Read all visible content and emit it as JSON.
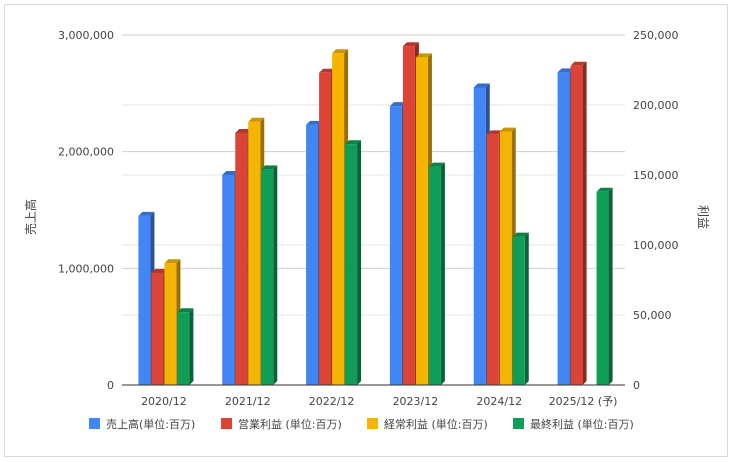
{
  "chart_data": {
    "type": "bar",
    "title": "",
    "categories": [
      "2020/12",
      "2021/12",
      "2022/12",
      "2023/12",
      "2024/12",
      "2025/12 (予)"
    ],
    "left_axis": {
      "label": "売上高",
      "ylim": [
        0,
        3000000
      ],
      "ticks": [
        "0",
        "1,000,000",
        "2,000,000",
        "3,000,000"
      ]
    },
    "right_axis": {
      "label": "利益",
      "ylim": [
        0,
        250000
      ],
      "ticks": [
        "0",
        "50,000",
        "100,000",
        "150,000",
        "200,000",
        "250,000"
      ]
    },
    "series": [
      {
        "name": "売上高(単位:百万)",
        "axis": "left",
        "color": "#4285f4",
        "values": [
          1450000,
          1800000,
          2230000,
          2390000,
          2550000,
          2680000
        ]
      },
      {
        "name": "営業利益 (単位:百万)",
        "axis": "right",
        "color": "#db4437",
        "values": [
          80000,
          180000,
          223000,
          242000,
          179000,
          228000
        ]
      },
      {
        "name": "経常利益 (単位:百万)",
        "axis": "right",
        "color": "#f4b400",
        "values": [
          87000,
          188000,
          237000,
          234000,
          181000,
          null
        ]
      },
      {
        "name": "最終利益 (単位:百万)",
        "axis": "right",
        "color": "#0f9d58",
        "values": [
          52000,
          154000,
          172000,
          156000,
          106000,
          138000
        ]
      }
    ],
    "grid": true,
    "legend_position": "bottom"
  }
}
